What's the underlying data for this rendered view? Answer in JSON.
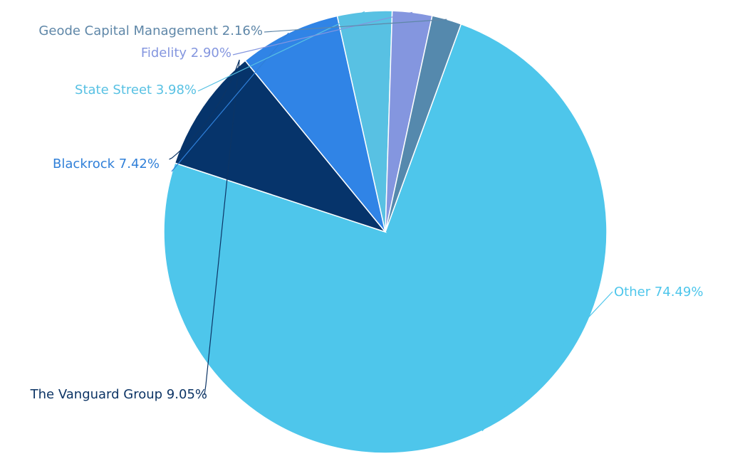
{
  "chart_data": {
    "type": "pie",
    "title": "",
    "slices": [
      {
        "label": "Other",
        "value": 74.49,
        "value_text": "74.49%",
        "color": "#4ec6eb",
        "label_color": "#4ec6eb"
      },
      {
        "label": "The Vanguard Group",
        "value": 9.05,
        "value_text": "9.05%",
        "color": "#06346b",
        "label_color": "#0c3465"
      },
      {
        "label": "Blackrock",
        "value": 7.42,
        "value_text": "7.42%",
        "color": "#3084e6",
        "label_color": "#2f7fd8"
      },
      {
        "label": "State Street",
        "value": 3.98,
        "value_text": "3.98%",
        "color": "#58c1e3",
        "label_color": "#58c1e3"
      },
      {
        "label": "Fidelity",
        "value": 2.9,
        "value_text": "2.90%",
        "color": "#8496df",
        "label_color": "#8496df"
      },
      {
        "label": "Geode Capital Management",
        "value": 2.16,
        "value_text": "2.16%",
        "color": "#5589ad",
        "label_color": "#5f87a8"
      }
    ]
  }
}
